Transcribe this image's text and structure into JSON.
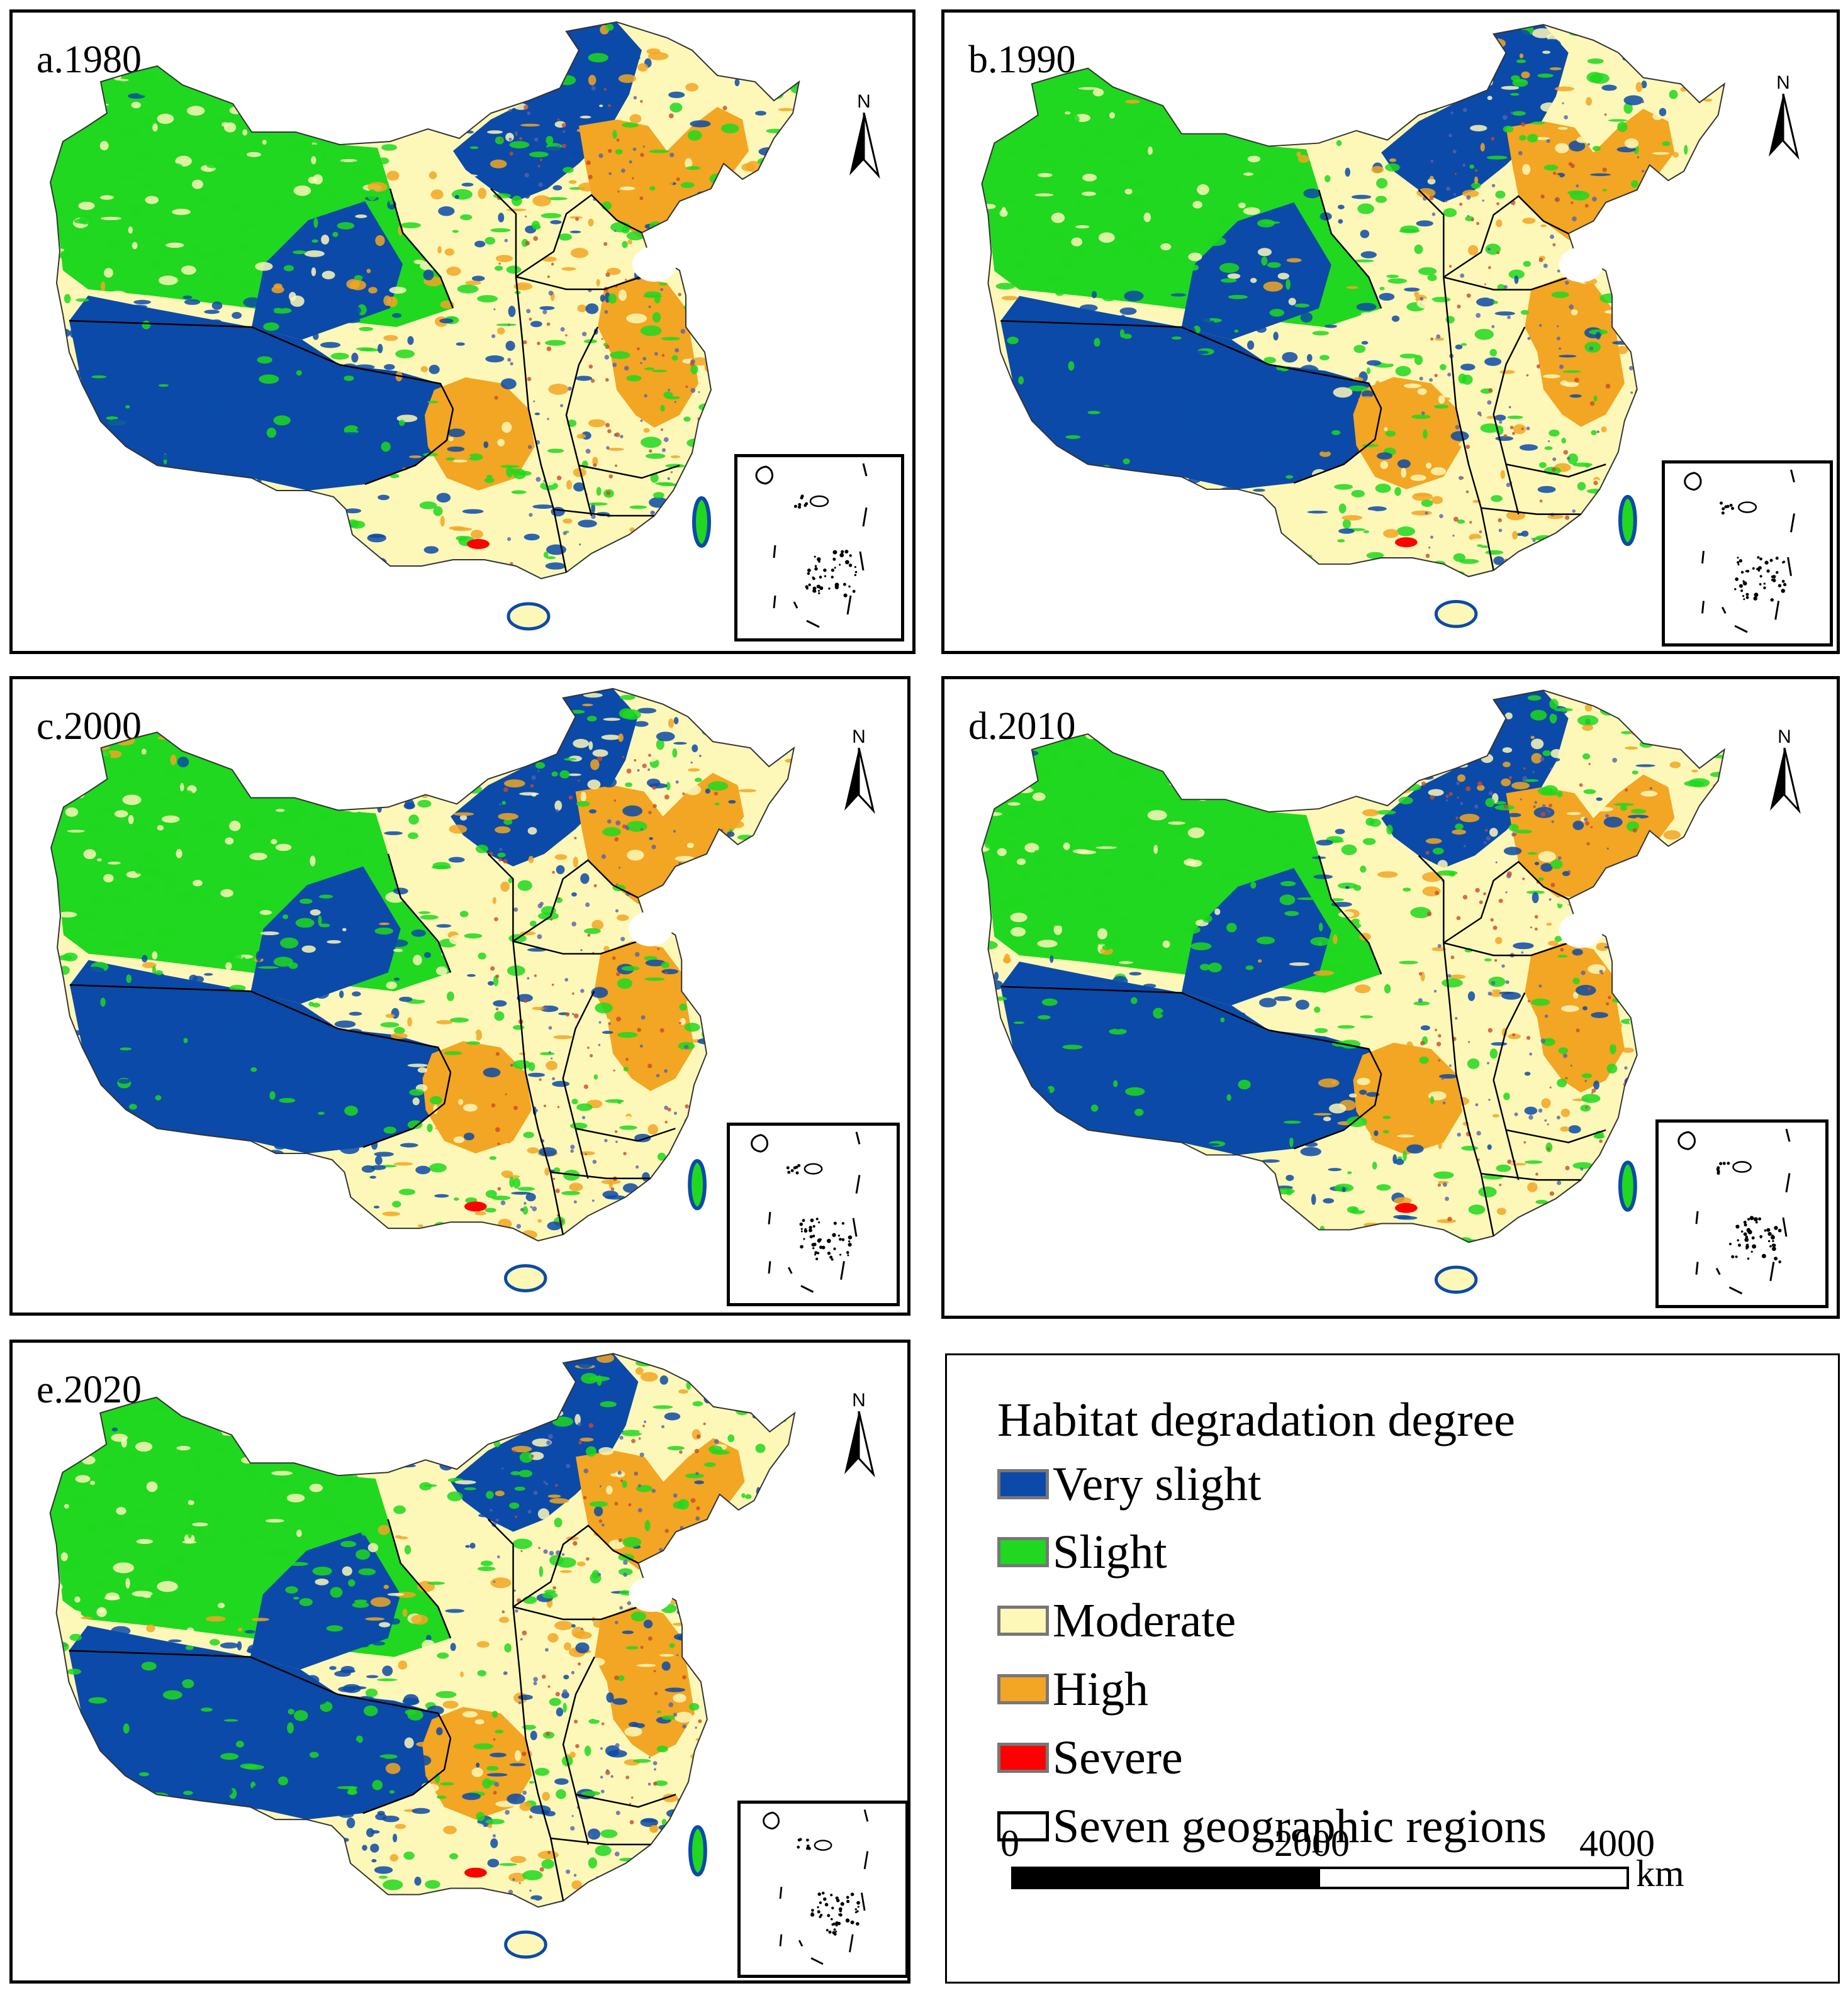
{
  "panels": [
    {
      "label": "a.1980"
    },
    {
      "label": "b.1990"
    },
    {
      "label": "c.2000"
    },
    {
      "label": "d.2010"
    },
    {
      "label": "e.2020"
    }
  ],
  "north_arrow": {
    "letter": "N"
  },
  "legend": {
    "title": "Habitat degradation degree",
    "items": [
      {
        "label": "Very slight",
        "color": "#0b4aa8"
      },
      {
        "label": "Slight",
        "color": "#1fd81f"
      },
      {
        "label": "Moderate",
        "color": "#fdf8b8"
      },
      {
        "label": "High",
        "color": "#f2a623"
      },
      {
        "label": "Severe",
        "color": "#ff0000"
      },
      {
        "label": "Seven geographic regions",
        "color": "#ffffff"
      }
    ]
  },
  "scale": {
    "ticks": [
      "0",
      "2000",
      "4000"
    ],
    "unit": "km"
  }
}
